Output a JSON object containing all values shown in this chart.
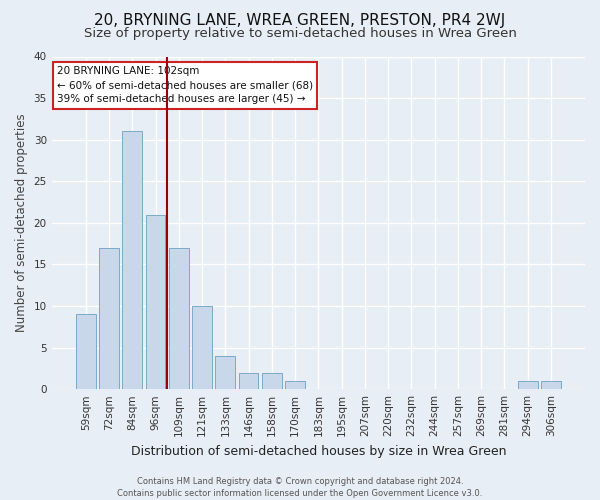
{
  "title": "20, BRYNING LANE, WREA GREEN, PRESTON, PR4 2WJ",
  "subtitle": "Size of property relative to semi-detached houses in Wrea Green",
  "xlabel": "Distribution of semi-detached houses by size in Wrea Green",
  "ylabel": "Number of semi-detached properties",
  "categories": [
    "59sqm",
    "72sqm",
    "84sqm",
    "96sqm",
    "109sqm",
    "121sqm",
    "133sqm",
    "146sqm",
    "158sqm",
    "170sqm",
    "183sqm",
    "195sqm",
    "207sqm",
    "220sqm",
    "232sqm",
    "244sqm",
    "257sqm",
    "269sqm",
    "281sqm",
    "294sqm",
    "306sqm"
  ],
  "values": [
    9,
    17,
    31,
    21,
    17,
    10,
    4,
    2,
    2,
    1,
    0,
    0,
    0,
    0,
    0,
    0,
    0,
    0,
    0,
    1,
    1
  ],
  "bar_color": "#c8d8ea",
  "bar_edge_color": "#7aaac8",
  "vline_x_index": 3,
  "vline_color": "#990000",
  "annotation_text": "20 BRYNING LANE: 102sqm\n← 60% of semi-detached houses are smaller (68)\n39% of semi-detached houses are larger (45) →",
  "annotation_box_facecolor": "#ffffff",
  "annotation_box_edgecolor": "#cc2222",
  "ylim": [
    0,
    40
  ],
  "yticks": [
    0,
    5,
    10,
    15,
    20,
    25,
    30,
    35,
    40
  ],
  "footnote": "Contains HM Land Registry data © Crown copyright and database right 2024.\nContains public sector information licensed under the Open Government Licence v3.0.",
  "bg_color": "#e8eef5",
  "grid_color": "#ffffff",
  "title_fontsize": 11,
  "subtitle_fontsize": 9.5,
  "xlabel_fontsize": 9,
  "ylabel_fontsize": 8.5,
  "tick_fontsize": 7.5,
  "annotation_fontsize": 7.5,
  "footnote_fontsize": 6
}
